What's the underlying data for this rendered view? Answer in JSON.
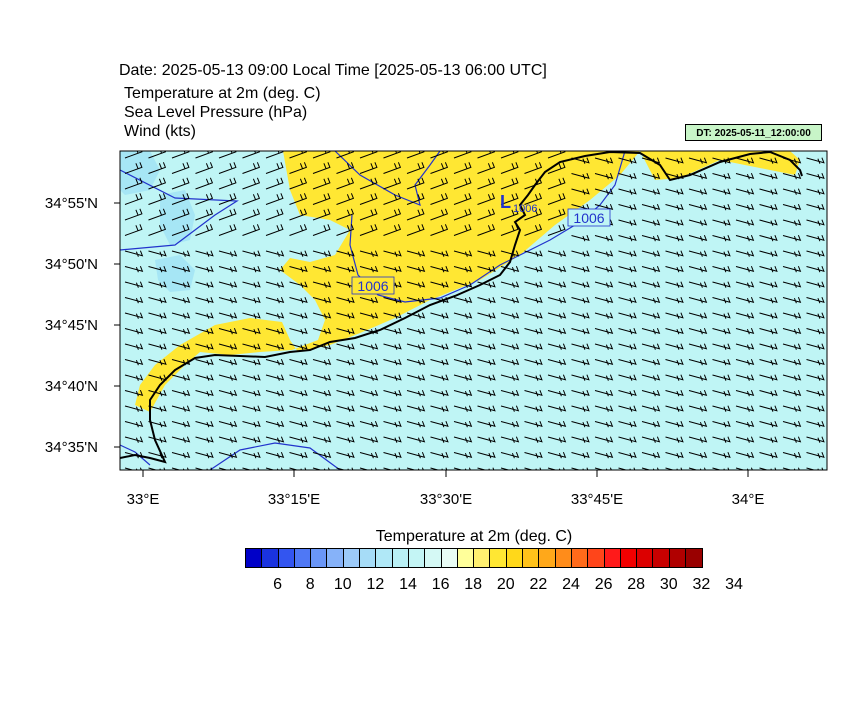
{
  "header": {
    "date_line": "Date: 2025-05-13  09:00 Local Time [2025-05-13  06:00 UTC]",
    "variables": [
      "Temperature at 2m   (deg. C)",
      "Sea Level Pressure   (hPa)",
      "Wind   (kts)"
    ],
    "dt_badge": "DT: 2025-05-11_12:00:00"
  },
  "map": {
    "lat_labels": [
      "34°55'N",
      "34°50'N",
      "34°45'N",
      "34°40'N",
      "34°35'N"
    ],
    "lon_labels": [
      "33°E",
      "33°15'E",
      "33°30'E",
      "33°45'E",
      "34°E"
    ],
    "isobar_labels": [
      "1006",
      "1006"
    ],
    "low_marker": "L",
    "low_value": "1006",
    "colors": {
      "sea_temp": "#bff5f5",
      "warm_land": "#ffe733",
      "cool_patch": "#a6e6f5",
      "isobar": "#2233cc",
      "coast": "#000000"
    }
  },
  "colorbar": {
    "title": "Temperature at 2m  (deg. C)",
    "tick_labels": [
      "6",
      "8",
      "10",
      "12",
      "14",
      "16",
      "18",
      "20",
      "22",
      "24",
      "26",
      "28",
      "30",
      "32",
      "34"
    ],
    "colors": [
      "#0000c8",
      "#1a33e0",
      "#3355f0",
      "#4f78f5",
      "#6a96f7",
      "#86b2f9",
      "#9ccaf9",
      "#a6dcf7",
      "#b0e8f7",
      "#b9f0f5",
      "#c4f5f5",
      "#d5f9f5",
      "#e8fcf5",
      "#ffff9a",
      "#fff070",
      "#ffe733",
      "#ffd81a",
      "#ffc21a",
      "#ffa81a",
      "#ff8c1a",
      "#ff6a1a",
      "#ff451a",
      "#ff1a1a",
      "#f20000",
      "#dc0000",
      "#c80000",
      "#b00000",
      "#990000"
    ]
  }
}
